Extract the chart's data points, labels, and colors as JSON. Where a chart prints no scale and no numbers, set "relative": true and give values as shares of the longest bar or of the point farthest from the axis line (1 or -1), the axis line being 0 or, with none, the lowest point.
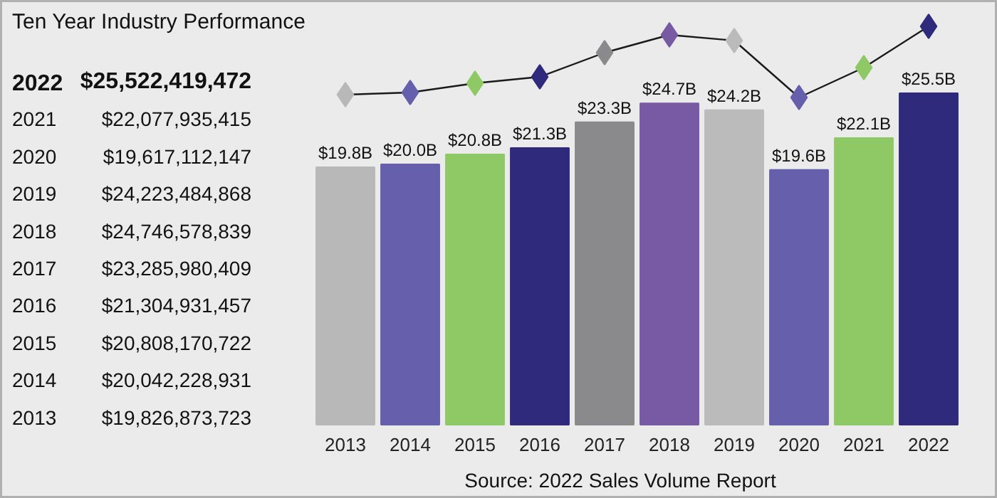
{
  "chart_data": [
    {
      "type": "bar",
      "title": "Ten Year Industry Performance",
      "categories": [
        "2013",
        "2014",
        "2015",
        "2016",
        "2017",
        "2018",
        "2019",
        "2020",
        "2021",
        "2022"
      ],
      "colors": [
        "#b8b8b8",
        "#665fac",
        "#8fc965",
        "#302a7c",
        "#8a8a8c",
        "#785aa4",
        "#bbbbbb",
        "#665fac",
        "#8fc965",
        "#302a7c"
      ],
      "values": [
        19826873723,
        20042228931,
        20808170722,
        21304931457,
        23285980409,
        24746578839,
        24223484868,
        19617112147,
        22077935415,
        25522419472
      ],
      "value_labels": [
        "$19.8B",
        "$20.0B",
        "$20.8B",
        "$21.3B",
        "$23.3B",
        "$24.7B",
        "$24.2B",
        "$19.6B",
        "$22.1B",
        "$25.5B"
      ],
      "annotations": [
        "2022 $25,522,419,472",
        "2021 $22,077,935,415",
        "2020 $19,617,112,147",
        "2019 $24,223,484,868",
        "2018 $24,746,578,839",
        "2017 $23,285,980,409",
        "2016 $21,304,931,457",
        "2015 $20,808,170,722",
        "2014 $20,042,228,931",
        "2013 $19,826,873,723",
        "Source: 2022 Sales Volume Report"
      ]
    },
    {
      "type": "line",
      "relative": true,
      "tick_labels": false,
      "marker": "diamond",
      "categories": [
        "2013",
        "2014",
        "2015",
        "2016",
        "2017",
        "2018",
        "2019",
        "2020",
        "2021",
        "2022"
      ],
      "series": [
        {
          "color": "#1a1a1a",
          "colors": [
            "#b8b8b8",
            "#665fac",
            "#8fc965",
            "#302a7c",
            "#8a8a8c",
            "#785aa4",
            "#bbbbbb",
            "#665fac",
            "#8fc965",
            "#302a7c"
          ],
          "values": [
            0.04,
            0.07,
            0.2,
            0.29,
            0.63,
            0.88,
            0.8,
            0,
            0.42,
            1
          ]
        }
      ]
    }
  ]
}
